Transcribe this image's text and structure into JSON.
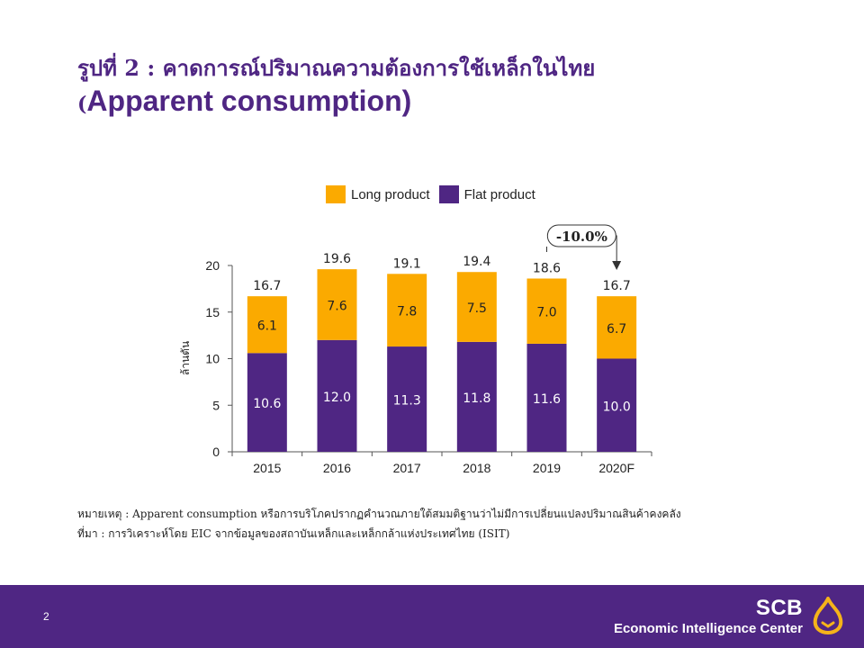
{
  "slide": {
    "title_line1": "รูปที่ 2 : คาดการณ์ปริมาณความต้องการใช้เหล็กในไทย",
    "title_line2_paren": "(",
    "title_line2_text": "Apparent consumption)",
    "notes_remark": "หมายเหตุ : Apparent consumption หรือการบริโภคปรากฏคำนวณภายใต้สมมติฐานว่าไม่มีการเปลี่ยนแปลงปริมาณสินค้าคงคลัง",
    "notes_source": "ที่มา : การวิเคราะห์โดย EIC จากข้อมูลของสถาบันเหล็กและเหล็กกล้าแห่งประเทศไทย (ISIT)",
    "page_number": "2",
    "brand_name": "SCB",
    "brand_sub": "Economic Intelligence Center"
  },
  "colors": {
    "flat": "#4f2683",
    "long": "#fbaa00",
    "footer": "#4f2683",
    "title": "#4f2683"
  },
  "chart_data": {
    "type": "bar",
    "stacked": true,
    "categories": [
      "2015",
      "2016",
      "2017",
      "2018",
      "2019",
      "2020F"
    ],
    "series": [
      {
        "name": "Flat product",
        "values": [
          10.6,
          12.0,
          11.3,
          11.8,
          11.6,
          10.0
        ]
      },
      {
        "name": "Long product",
        "values": [
          6.1,
          7.6,
          7.8,
          7.5,
          7.0,
          6.7
        ]
      }
    ],
    "totals": [
      16.7,
      19.6,
      19.1,
      19.4,
      18.6,
      16.7
    ],
    "legend": [
      "Long product",
      "Flat product"
    ],
    "legend_position": "top",
    "ylabel": "ล้านตัน",
    "ylim": [
      0,
      20
    ],
    "yticks": [
      0,
      5,
      10,
      15,
      20
    ],
    "grid": false,
    "annotation": {
      "text": "-10.0%",
      "from": "2019",
      "to": "2020F"
    }
  }
}
